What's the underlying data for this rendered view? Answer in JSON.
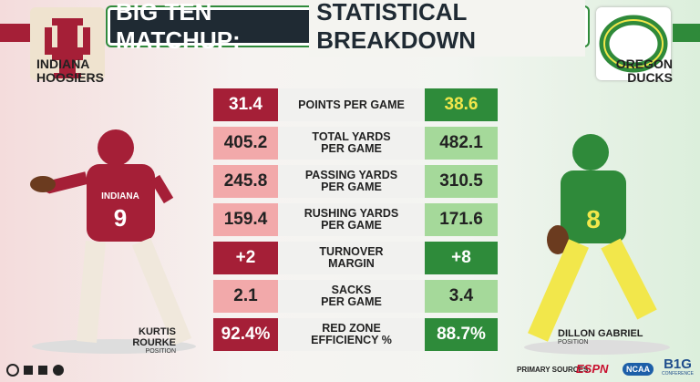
{
  "header": {
    "title_lead": "BIG TEN MATCHUP:",
    "title_rest": "STATISTICAL BREAKDOWN"
  },
  "teams": {
    "left": {
      "name_line1": "INDIANA",
      "name_line2": "HOOSIERS",
      "jersey_text": "INDIANA",
      "jersey_number": "9",
      "player": "KURTIS ROURKE",
      "position": "POSITION"
    },
    "right": {
      "name_line1": "OREGON",
      "name_line2": "DUCKS",
      "jersey_number": "8",
      "player": "DILLON GABRIEL",
      "position": "POSITION"
    }
  },
  "stats": {
    "rows": [
      [
        "31.4",
        [
          "POINTS PER GAME"
        ],
        "38.6"
      ],
      [
        "405.2",
        [
          "TOTAL YARDS",
          "PER GAME"
        ],
        "482.1"
      ],
      [
        "245.8",
        [
          "PASSING YARDS",
          "PER GAME"
        ],
        "310.5"
      ],
      [
        "159.4",
        [
          "RUSHING YARDS",
          "PER GAME"
        ],
        "171.6"
      ],
      [
        "+2",
        [
          "TURNOVER",
          "MARGIN"
        ],
        "+8"
      ],
      [
        "2.1",
        [
          "SACKS",
          "PER GAME"
        ],
        "3.4"
      ],
      [
        "92.4%",
        [
          "RED ZONE",
          "EFFICIENCY %"
        ],
        "88.7%"
      ]
    ]
  },
  "footer": {
    "sources_label": "PRIMARY SOURCES:",
    "sources": [
      "ESPN",
      "NCAA",
      "B1G"
    ],
    "b1g_sub": "CONFERENCE"
  }
}
